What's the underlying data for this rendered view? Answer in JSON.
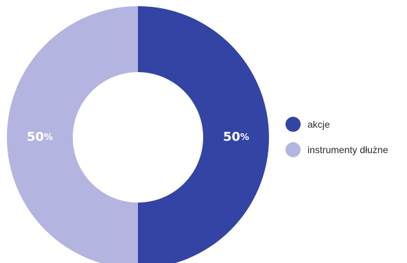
{
  "chart_data": {
    "type": "pie",
    "variant": "donut",
    "title": "",
    "categories": [
      "akcje",
      "instrumenty dłużne"
    ],
    "values": [
      50,
      50
    ],
    "value_labels": [
      "50%",
      "50%"
    ],
    "colors": [
      "#3344a4",
      "#b4b4e1"
    ],
    "legend_placement": "right"
  },
  "legend": {
    "items": [
      {
        "label": "akcje",
        "color": "#3344a4"
      },
      {
        "label": "instrumenty dłużne",
        "color": "#b4b4e1"
      }
    ]
  }
}
